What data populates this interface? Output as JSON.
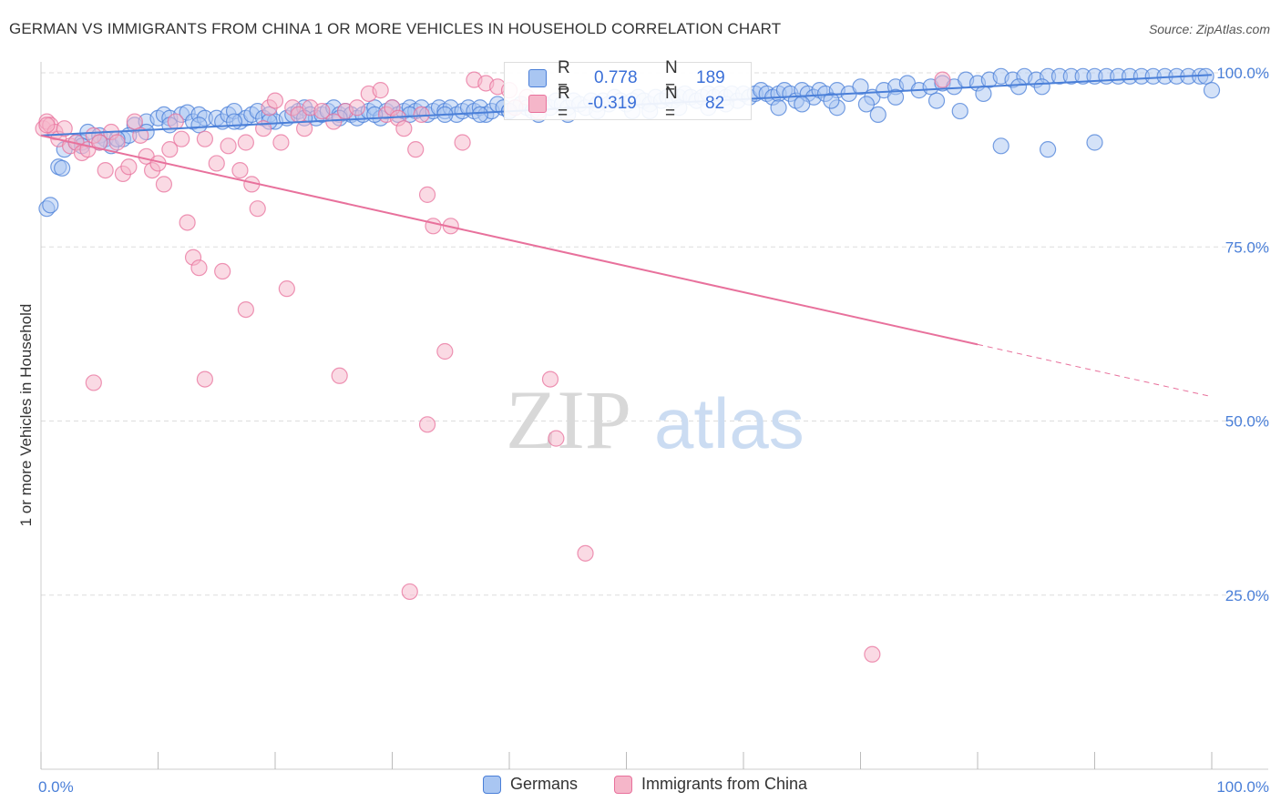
{
  "header": {
    "title": "GERMAN VS IMMIGRANTS FROM CHINA 1 OR MORE VEHICLES IN HOUSEHOLD CORRELATION CHART",
    "source": "Source: ZipAtlas.com"
  },
  "stats": {
    "r_label": "R =",
    "n_label": "N =",
    "germans": {
      "r": "0.778",
      "n": "189",
      "color": "#4a7fd8"
    },
    "china": {
      "r": "-0.319",
      "n": "82",
      "color": "#e8719c"
    }
  },
  "watermark": {
    "zip": "ZIP",
    "atlas": "atlas"
  },
  "chart_data": {
    "type": "scatter",
    "title": "GERMAN VS IMMIGRANTS FROM CHINA 1 OR MORE VEHICLES IN HOUSEHOLD CORRELATION CHART",
    "xlabel": "",
    "ylabel": "1 or more Vehicles in Household",
    "xlim": [
      0,
      100
    ],
    "ylim": [
      0,
      100
    ],
    "x_tick_labels": [
      "0.0%",
      "100.0%"
    ],
    "y_tick_labels": [
      "100.0%",
      "75.0%",
      "50.0%",
      "25.0%"
    ],
    "y_ticks": [
      100,
      75,
      50,
      25
    ],
    "grid": "horizontal dashed",
    "legend_position": "bottom-center",
    "series": [
      {
        "name": "Germans",
        "color": "#4a7fd8",
        "fill": "#a9c6f2",
        "trendline": {
          "x": [
            0,
            100
          ],
          "y": [
            91.0,
            99.7
          ],
          "style": "solid"
        },
        "points": [
          [
            0.5,
            80.5
          ],
          [
            0.8,
            81.0
          ],
          [
            1.5,
            86.5
          ],
          [
            1.8,
            86.3
          ],
          [
            2.0,
            89.0
          ],
          [
            3.0,
            90.0
          ],
          [
            3.5,
            90.0
          ],
          [
            4.0,
            91.5
          ],
          [
            5.0,
            91.0
          ],
          [
            5.5,
            90.5
          ],
          [
            6.0,
            89.5
          ],
          [
            7.0,
            90.5
          ],
          [
            8.0,
            92.5
          ],
          [
            9.0,
            93.0
          ],
          [
            10.0,
            93.5
          ],
          [
            10.5,
            94.0
          ],
          [
            11.0,
            93.5
          ],
          [
            12.0,
            94.0
          ],
          [
            12.5,
            94.3
          ],
          [
            13.0,
            93.0
          ],
          [
            13.5,
            94.0
          ],
          [
            14.0,
            93.5
          ],
          [
            15.0,
            93.5
          ],
          [
            15.5,
            93.0
          ],
          [
            16.0,
            94.0
          ],
          [
            16.5,
            94.5
          ],
          [
            17.0,
            93.0
          ],
          [
            17.5,
            93.5
          ],
          [
            18.0,
            94.0
          ],
          [
            18.5,
            94.5
          ],
          [
            19.0,
            93.5
          ],
          [
            19.5,
            94.0
          ],
          [
            20.0,
            93.0
          ],
          [
            21.0,
            93.5
          ],
          [
            21.5,
            94.0
          ],
          [
            22.0,
            94.5
          ],
          [
            22.5,
            95.0
          ],
          [
            23.0,
            94.0
          ],
          [
            23.5,
            93.5
          ],
          [
            24.0,
            94.0
          ],
          [
            24.5,
            94.5
          ],
          [
            25.0,
            95.0
          ],
          [
            25.5,
            94.0
          ],
          [
            26.0,
            94.5
          ],
          [
            26.5,
            94.0
          ],
          [
            27.0,
            93.5
          ],
          [
            27.5,
            94.0
          ],
          [
            28.0,
            94.5
          ],
          [
            28.5,
            95.0
          ],
          [
            29.0,
            93.5
          ],
          [
            29.5,
            94.5
          ],
          [
            30.0,
            95.0
          ],
          [
            30.5,
            94.0
          ],
          [
            31.0,
            94.5
          ],
          [
            31.5,
            95.0
          ],
          [
            32.0,
            94.5
          ],
          [
            32.5,
            95.0
          ],
          [
            33.0,
            94.0
          ],
          [
            33.5,
            94.5
          ],
          [
            34.0,
            95.0
          ],
          [
            34.5,
            94.5
          ],
          [
            35.0,
            95.0
          ],
          [
            35.5,
            94.0
          ],
          [
            36.0,
            94.5
          ],
          [
            36.5,
            95.0
          ],
          [
            37.0,
            94.5
          ],
          [
            37.5,
            95.0
          ],
          [
            38.0,
            94.0
          ],
          [
            38.5,
            94.5
          ],
          [
            39.0,
            95.5
          ],
          [
            39.5,
            95.0
          ],
          [
            40.0,
            94.5
          ],
          [
            40.5,
            95.0
          ],
          [
            41.0,
            95.5
          ],
          [
            41.5,
            95.0
          ],
          [
            42.0,
            94.5
          ],
          [
            42.5,
            95.0
          ],
          [
            43.0,
            95.5
          ],
          [
            43.5,
            95.0
          ],
          [
            44.0,
            96.0
          ],
          [
            44.5,
            95.5
          ],
          [
            45.0,
            95.0
          ],
          [
            45.5,
            96.0
          ],
          [
            46.0,
            95.5
          ],
          [
            46.5,
            95.0
          ],
          [
            47.0,
            96.0
          ],
          [
            47.5,
            95.5
          ],
          [
            48.0,
            96.0
          ],
          [
            48.5,
            95.5
          ],
          [
            49.0,
            96.5
          ],
          [
            49.5,
            96.0
          ],
          [
            50.0,
            95.5
          ],
          [
            50.5,
            96.0
          ],
          [
            51.0,
            96.5
          ],
          [
            51.5,
            96.0
          ],
          [
            52.0,
            95.5
          ],
          [
            52.5,
            96.5
          ],
          [
            53.0,
            96.0
          ],
          [
            53.5,
            96.5
          ],
          [
            54.0,
            96.0
          ],
          [
            54.5,
            96.5
          ],
          [
            55.0,
            97.0
          ],
          [
            55.5,
            96.5
          ],
          [
            56.0,
            96.0
          ],
          [
            56.5,
            96.5
          ],
          [
            57.0,
            97.0
          ],
          [
            57.5,
            96.5
          ],
          [
            58.0,
            97.0
          ],
          [
            58.5,
            96.5
          ],
          [
            59.0,
            97.0
          ],
          [
            59.5,
            96.0
          ],
          [
            60.0,
            97.0
          ],
          [
            60.5,
            96.5
          ],
          [
            61.0,
            97.0
          ],
          [
            61.5,
            97.5
          ],
          [
            62.0,
            97.0
          ],
          [
            62.5,
            96.5
          ],
          [
            63.0,
            97.0
          ],
          [
            63.5,
            97.5
          ],
          [
            64.0,
            97.0
          ],
          [
            64.5,
            96.0
          ],
          [
            65.0,
            97.5
          ],
          [
            65.5,
            97.0
          ],
          [
            66.0,
            96.5
          ],
          [
            66.5,
            97.5
          ],
          [
            67.0,
            97.0
          ],
          [
            68.0,
            97.5
          ],
          [
            69.0,
            97.0
          ],
          [
            70.0,
            98.0
          ],
          [
            71.0,
            96.5
          ],
          [
            72.0,
            97.5
          ],
          [
            73.0,
            98.0
          ],
          [
            74.0,
            98.5
          ],
          [
            75.0,
            97.5
          ],
          [
            76.0,
            98.0
          ],
          [
            77.0,
            98.5
          ],
          [
            78.0,
            98.0
          ],
          [
            79.0,
            99.0
          ],
          [
            80.0,
            98.5
          ],
          [
            81.0,
            99.0
          ],
          [
            82.0,
            99.5
          ],
          [
            83.0,
            99.0
          ],
          [
            84.0,
            99.5
          ],
          [
            85.0,
            99.0
          ],
          [
            86.0,
            99.5
          ],
          [
            87.0,
            99.5
          ],
          [
            88.0,
            99.5
          ],
          [
            89.0,
            99.5
          ],
          [
            90.0,
            99.5
          ],
          [
            91.0,
            99.5
          ],
          [
            92.0,
            99.5
          ],
          [
            93.0,
            99.5
          ],
          [
            94.0,
            99.5
          ],
          [
            95.0,
            99.5
          ],
          [
            96.0,
            99.5
          ],
          [
            97.0,
            99.5
          ],
          [
            98.0,
            99.5
          ],
          [
            99.0,
            99.5
          ],
          [
            99.5,
            99.5
          ],
          [
            100.0,
            97.5
          ],
          [
            63.0,
            95.0
          ],
          [
            65.0,
            95.5
          ],
          [
            68.0,
            95.0
          ],
          [
            70.5,
            95.5
          ],
          [
            71.5,
            94.0
          ],
          [
            76.5,
            96.0
          ],
          [
            78.5,
            94.5
          ],
          [
            80.5,
            97.0
          ],
          [
            83.5,
            98.0
          ],
          [
            85.5,
            98.0
          ],
          [
            82.0,
            89.5
          ],
          [
            86.0,
            89.0
          ],
          [
            90.0,
            90.0
          ],
          [
            73.0,
            96.5
          ],
          [
            67.5,
            96.0
          ],
          [
            57.0,
            95.0
          ],
          [
            58.5,
            95.5
          ],
          [
            54.5,
            95.0
          ],
          [
            52.0,
            94.5
          ],
          [
            50.5,
            94.5
          ],
          [
            47.5,
            94.5
          ],
          [
            45.0,
            94.0
          ],
          [
            42.5,
            94.0
          ],
          [
            40.0,
            94.5
          ],
          [
            37.5,
            94.0
          ],
          [
            34.5,
            94.0
          ],
          [
            31.5,
            94.0
          ],
          [
            28.5,
            94.0
          ],
          [
            25.5,
            93.5
          ],
          [
            22.5,
            93.5
          ],
          [
            19.5,
            93.0
          ],
          [
            16.5,
            93.0
          ],
          [
            13.5,
            92.5
          ],
          [
            11.0,
            92.5
          ],
          [
            9.0,
            91.5
          ],
          [
            7.5,
            91.0
          ],
          [
            6.5,
            90.5
          ],
          [
            5.0,
            90.0
          ],
          [
            3.5,
            89.5
          ]
        ]
      },
      {
        "name": "Immigrants from China",
        "color": "#e8719c",
        "fill": "#f5b6c9",
        "trendline": {
          "x": [
            0,
            80
          ],
          "y": [
            91.0,
            61.0
          ],
          "style": "solid",
          "extension": {
            "x": [
              80,
              100
            ],
            "y": [
              61.0,
              53.5
            ],
            "style": "dashed"
          }
        },
        "points": [
          [
            0.2,
            92.0
          ],
          [
            0.5,
            93.0
          ],
          [
            0.8,
            92.5
          ],
          [
            1.2,
            91.5
          ],
          [
            1.5,
            90.5
          ],
          [
            2.0,
            92.0
          ],
          [
            2.5,
            89.5
          ],
          [
            3.0,
            90.0
          ],
          [
            3.5,
            88.5
          ],
          [
            4.0,
            89.0
          ],
          [
            4.5,
            91.0
          ],
          [
            5.0,
            90.0
          ],
          [
            5.5,
            86.0
          ],
          [
            6.0,
            91.5
          ],
          [
            6.5,
            90.0
          ],
          [
            7.0,
            85.5
          ],
          [
            7.5,
            86.5
          ],
          [
            8.0,
            93.0
          ],
          [
            8.5,
            91.0
          ],
          [
            9.0,
            88.0
          ],
          [
            9.5,
            86.0
          ],
          [
            10.0,
            87.0
          ],
          [
            10.5,
            84.0
          ],
          [
            11.0,
            89.0
          ],
          [
            11.5,
            93.0
          ],
          [
            12.0,
            90.5
          ],
          [
            12.5,
            78.5
          ],
          [
            13.0,
            73.5
          ],
          [
            13.5,
            72.0
          ],
          [
            14.0,
            90.5
          ],
          [
            15.0,
            87.0
          ],
          [
            15.5,
            71.5
          ],
          [
            16.0,
            89.5
          ],
          [
            17.0,
            86.0
          ],
          [
            17.5,
            90.0
          ],
          [
            18.0,
            84.0
          ],
          [
            18.5,
            80.5
          ],
          [
            19.0,
            92.0
          ],
          [
            19.5,
            95.0
          ],
          [
            20.0,
            96.0
          ],
          [
            20.5,
            90.0
          ],
          [
            21.0,
            69.0
          ],
          [
            21.5,
            95.0
          ],
          [
            22.0,
            94.0
          ],
          [
            22.5,
            92.0
          ],
          [
            23.0,
            95.0
          ],
          [
            24.0,
            94.5
          ],
          [
            25.0,
            93.0
          ],
          [
            26.0,
            94.5
          ],
          [
            27.0,
            95.0
          ],
          [
            28.0,
            97.0
          ],
          [
            29.0,
            97.5
          ],
          [
            29.5,
            94.0
          ],
          [
            30.0,
            95.0
          ],
          [
            30.5,
            93.5
          ],
          [
            31.0,
            92.0
          ],
          [
            32.0,
            89.0
          ],
          [
            32.5,
            94.0
          ],
          [
            33.0,
            82.5
          ],
          [
            33.5,
            78.0
          ],
          [
            34.5,
            60.0
          ],
          [
            35.0,
            78.0
          ],
          [
            36.0,
            90.0
          ],
          [
            37.0,
            99.0
          ],
          [
            38.0,
            98.5
          ],
          [
            39.0,
            98.0
          ],
          [
            40.0,
            97.5
          ],
          [
            40.5,
            95.0
          ],
          [
            41.5,
            96.5
          ],
          [
            42.5,
            94.5
          ],
          [
            43.5,
            56.0
          ],
          [
            44.0,
            47.5
          ],
          [
            46.5,
            31.0
          ],
          [
            33.0,
            49.5
          ],
          [
            31.5,
            25.5
          ],
          [
            25.5,
            56.5
          ],
          [
            14.0,
            56.0
          ],
          [
            4.5,
            55.5
          ],
          [
            17.5,
            66.0
          ],
          [
            71.0,
            16.5
          ],
          [
            77.0,
            99.0
          ],
          [
            0.5,
            92.5
          ]
        ]
      }
    ]
  }
}
